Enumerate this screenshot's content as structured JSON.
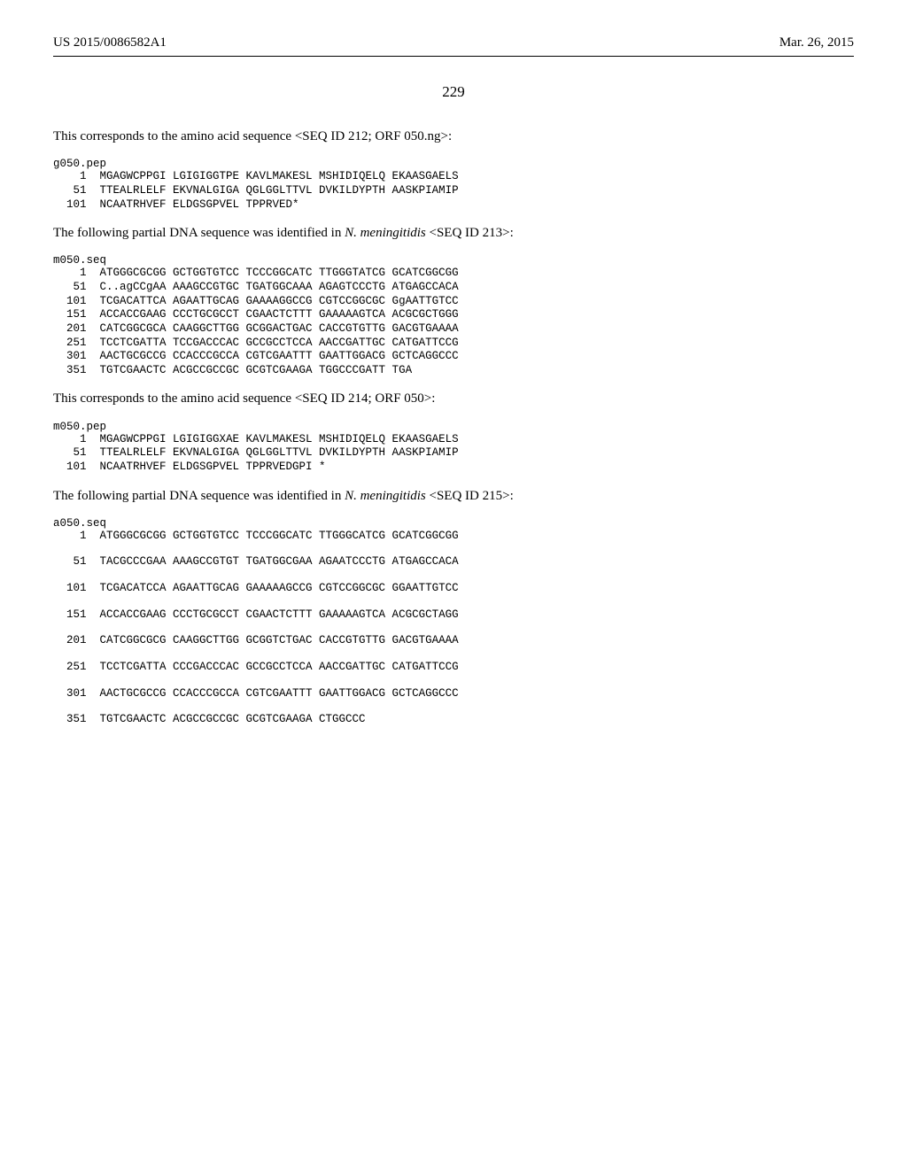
{
  "header": {
    "left": "US 2015/0086582A1",
    "right": "Mar. 26, 2015"
  },
  "page_number": "229",
  "sections": [
    {
      "type": "prose",
      "text": "This corresponds to the amino acid sequence <SEQ ID 212; ORF 050.ng>:"
    },
    {
      "type": "seq",
      "label": "g050.pep",
      "spaced": false,
      "rows": [
        {
          "n": "1",
          "cols": [
            "MGAGWCPPGI",
            "LGIGIGGTPE",
            "KAVLMAKESL",
            "MSHIDIQELQ",
            "EKAASGAELS"
          ]
        },
        {
          "n": "51",
          "cols": [
            "TTEALRLELF",
            "EKVNALGIGA",
            "QGLGGLTTVL",
            "DVKILDYPTH",
            "AASKPIAMIP"
          ]
        },
        {
          "n": "101",
          "cols": [
            "NCAATRHVEF",
            "ELDGSGPVEL",
            "TPPRVED*",
            "",
            ""
          ]
        }
      ]
    },
    {
      "type": "prose_italic",
      "plain": "The following partial DNA sequence was identified in ",
      "ital": "N. meningitidis",
      "tail": " <SEQ ID 213>:"
    },
    {
      "type": "seq",
      "label": "m050.seq",
      "spaced": false,
      "rows": [
        {
          "n": "1",
          "cols": [
            "ATGGGCGCGG",
            "GCTGGTGTCC",
            "TCCCGGCATC",
            "TTGGGTATCG",
            "GCATCGGCGG"
          ]
        },
        {
          "n": "51",
          "cols": [
            "C..agCCgAA",
            "AAAGCCGTGC",
            "TGATGGCAAA",
            "AGAGTCCCTG",
            "ATGAGCCACA"
          ]
        },
        {
          "n": "101",
          "cols": [
            "TCGACATTCA",
            "AGAATTGCAG",
            "GAAAAGGCCG",
            "CGTCCGGCGC",
            "GgAATTGTCC"
          ]
        },
        {
          "n": "151",
          "cols": [
            "ACCACCGAAG",
            "CCCTGCGCCT",
            "CGAACTCTTT",
            "GAAAAAGTCA",
            "ACGCGCTGGG"
          ]
        },
        {
          "n": "201",
          "cols": [
            "CATCGGCGCA",
            "CAAGGCTTGG",
            "GCGGACTGAC",
            "CACCGTGTTG",
            "GACGTGAAAA"
          ]
        },
        {
          "n": "251",
          "cols": [
            "TCCTCGATTA",
            "TCCGACCCAC",
            "GCCGCCTCCA",
            "AACCGATTGC",
            "CATGATTCCG"
          ]
        },
        {
          "n": "301",
          "cols": [
            "AACTGCGCCG",
            "CCACCCGCCA",
            "CGTCGAATTT",
            "GAATTGGACG",
            "GCTCAGGCCC"
          ]
        },
        {
          "n": "351",
          "cols": [
            "TGTCGAACTC",
            "ACGCCGCCGC",
            "GCGTCGAAGA",
            "TGGCCCGATT",
            "TGA"
          ]
        }
      ]
    },
    {
      "type": "prose",
      "text": "This corresponds to the amino acid sequence <SEQ ID 214; ORF 050>:"
    },
    {
      "type": "seq",
      "label": "m050.pep",
      "spaced": false,
      "rows": [
        {
          "n": "1",
          "cols": [
            "MGAGWCPPGI",
            "LGIGIGGXAE",
            "KAVLMAKESL",
            "MSHIDIQELQ",
            "EKAASGAELS"
          ]
        },
        {
          "n": "51",
          "cols": [
            "TTEALRLELF",
            "EKVNALGIGA",
            "QGLGGLTTVL",
            "DVKILDYPTH",
            "AASKPIAMIP"
          ]
        },
        {
          "n": "101",
          "cols": [
            "NCAATRHVEF",
            "ELDGSGPVEL",
            "TPPRVEDGPI",
            "*",
            ""
          ]
        }
      ]
    },
    {
      "type": "prose_italic",
      "plain": "The following partial DNA sequence was identified in ",
      "ital": "N. meningitidis",
      "tail": " <SEQ ID 215>:"
    },
    {
      "type": "seq",
      "label": "a050.seq",
      "spaced": true,
      "rows": [
        {
          "n": "1",
          "cols": [
            "ATGGGCGCGG",
            "GCTGGTGTCC",
            "TCCCGGCATC",
            "TTGGGCATCG",
            "GCATCGGCGG"
          ]
        },
        {
          "n": "51",
          "cols": [
            "TACGCCCGAA",
            "AAAGCCGTGT",
            "TGATGGCGAA",
            "AGAATCCCTG",
            "ATGAGCCACA"
          ]
        },
        {
          "n": "101",
          "cols": [
            "TCGACATCCA",
            "AGAATTGCAG",
            "GAAAAAGCCG",
            "CGTCCGGCGC",
            "GGAATTGTCC"
          ]
        },
        {
          "n": "151",
          "cols": [
            "ACCACCGAAG",
            "CCCTGCGCCT",
            "CGAACTCTTT",
            "GAAAAAGTCA",
            "ACGCGCTAGG"
          ]
        },
        {
          "n": "201",
          "cols": [
            "CATCGGCGCG",
            "CAAGGCTTGG",
            "GCGGTCTGAC",
            "CACCGTGTTG",
            "GACGTGAAAA"
          ]
        },
        {
          "n": "251",
          "cols": [
            "TCCTCGATTA",
            "CCCGACCCAC",
            "GCCGCCTCCA",
            "AACCGATTGC",
            "CATGATTCCG"
          ]
        },
        {
          "n": "301",
          "cols": [
            "AACTGCGCCG",
            "CCACCCGCCA",
            "CGTCGAATTT",
            "GAATTGGACG",
            "GCTCAGGCCC"
          ]
        },
        {
          "n": "351",
          "cols": [
            "TGTCGAACTC",
            "ACGCCGCCGC",
            "GCGTCGAAGA",
            "CTGGCCC",
            ""
          ]
        }
      ]
    }
  ],
  "layout": {
    "num_col_width": 5,
    "seq_col_width": 10
  }
}
